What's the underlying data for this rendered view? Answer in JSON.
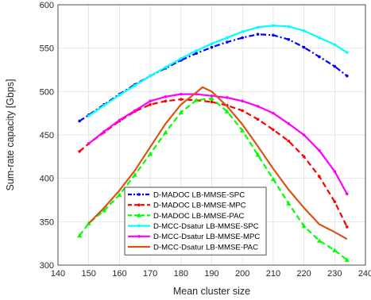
{
  "chart_data": {
    "type": "line",
    "xlabel": "Mean cluster size",
    "ylabel": "Sum-rate capacity [Gbps]",
    "xlim": [
      140,
      240
    ],
    "ylim": [
      300,
      600
    ],
    "xticks": [
      140,
      150,
      160,
      170,
      180,
      190,
      200,
      210,
      220,
      230,
      240
    ],
    "yticks": [
      300,
      350,
      400,
      450,
      500,
      550,
      600
    ],
    "grid": true,
    "legend_position": "bottom-left",
    "series": [
      {
        "name": "D-MADOC LB-MMSE-SPC",
        "color": "#0000ff",
        "dash": "dashdot",
        "marker": "dot",
        "x": [
          147,
          150,
          155,
          160,
          165,
          170,
          175,
          180,
          185,
          190,
          195,
          200,
          205,
          210,
          215,
          220,
          225,
          230,
          234
        ],
        "y": [
          466,
          473,
          485,
          497,
          508,
          518,
          527,
          536,
          544,
          551,
          557,
          562,
          566,
          565,
          560,
          551,
          540,
          529,
          518
        ]
      },
      {
        "name": "D-MADOC LB-MMSE-MPC",
        "color": "#ff0000",
        "dash": "dash",
        "marker": "dot",
        "x": [
          147,
          150,
          155,
          160,
          165,
          170,
          175,
          180,
          185,
          190,
          195,
          200,
          205,
          210,
          215,
          220,
          225,
          230,
          234
        ],
        "y": [
          431,
          440,
          453,
          466,
          477,
          485,
          489,
          491,
          490,
          488,
          484,
          478,
          468,
          456,
          443,
          425,
          402,
          373,
          344
        ]
      },
      {
        "name": "D-MADOC LB-MMSE-PAC",
        "color": "#00ff00",
        "dash": "dash",
        "marker": "triangle",
        "x": [
          147,
          150,
          155,
          160,
          165,
          170,
          175,
          180,
          185,
          190,
          195,
          200,
          205,
          210,
          215,
          220,
          225,
          230,
          234
        ],
        "y": [
          334,
          348,
          363,
          381,
          404,
          428,
          453,
          476,
          490,
          492,
          477,
          455,
          427,
          399,
          371,
          345,
          328,
          317,
          306
        ]
      },
      {
        "name": "D-MCC-Dsatur LB-MMSE-SPC",
        "color": "#00ffff",
        "dash": "solid",
        "marker": "dot",
        "x": [
          150,
          155,
          160,
          165,
          170,
          175,
          180,
          185,
          190,
          195,
          200,
          205,
          210,
          215,
          220,
          225,
          230,
          234
        ],
        "y": [
          472,
          484,
          496,
          507,
          518,
          528,
          538,
          547,
          555,
          562,
          569,
          574,
          576,
          575,
          570,
          562,
          554,
          545
        ]
      },
      {
        "name": "D-MCC-Dsatur LB-MMSE-MPC",
        "color": "#ff00ff",
        "dash": "solid",
        "marker": "dot",
        "x": [
          150,
          155,
          160,
          165,
          170,
          175,
          180,
          185,
          190,
          195,
          200,
          205,
          210,
          215,
          220,
          225,
          230,
          234
        ],
        "y": [
          440,
          454,
          467,
          478,
          489,
          494,
          497,
          497,
          495,
          493,
          489,
          483,
          475,
          463,
          450,
          432,
          408,
          382
        ]
      },
      {
        "name": "D-MCC-Dsatur LB-MMSE-PAC",
        "color": "#d95319",
        "dash": "solid",
        "marker": "none",
        "x": [
          150,
          155,
          160,
          165,
          170,
          175,
          180,
          185,
          187,
          190,
          195,
          200,
          205,
          210,
          215,
          220,
          225,
          230,
          234
        ],
        "y": [
          348,
          366,
          386,
          409,
          436,
          463,
          485,
          499,
          505,
          500,
          483,
          462,
          437,
          411,
          387,
          366,
          347,
          338,
          330
        ]
      }
    ]
  }
}
